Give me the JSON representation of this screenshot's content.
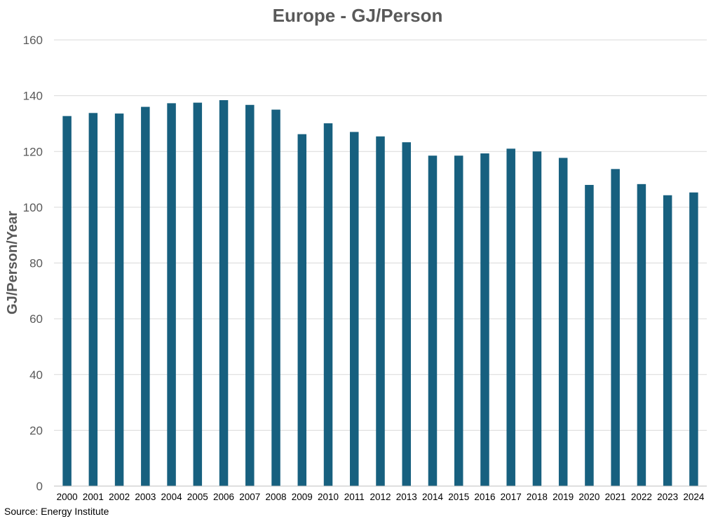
{
  "chart_data": {
    "type": "bar",
    "title": "Europe - GJ/Person",
    "xlabel": "",
    "ylabel": "GJ/Person/Year",
    "ylim": [
      0,
      160
    ],
    "yticks": [
      0,
      20,
      40,
      60,
      80,
      100,
      120,
      140,
      160
    ],
    "grid": true,
    "legend": "none",
    "categories": [
      "2000",
      "2001",
      "2002",
      "2003",
      "2004",
      "2005",
      "2006",
      "2007",
      "2008",
      "2009",
      "2010",
      "2011",
      "2012",
      "2013",
      "2014",
      "2015",
      "2016",
      "2017",
      "2018",
      "2019",
      "2020",
      "2021",
      "2022",
      "2023",
      "2024"
    ],
    "values": [
      132.7,
      133.8,
      133.6,
      136.0,
      137.3,
      137.5,
      138.4,
      136.7,
      135.0,
      126.2,
      130.1,
      127.0,
      125.4,
      123.3,
      118.5,
      118.5,
      119.3,
      121.0,
      120.0,
      117.7,
      108.0,
      113.7,
      108.3,
      104.3,
      105.3
    ],
    "bar_color": "#17607f",
    "source": "Source: Energy Institute"
  }
}
